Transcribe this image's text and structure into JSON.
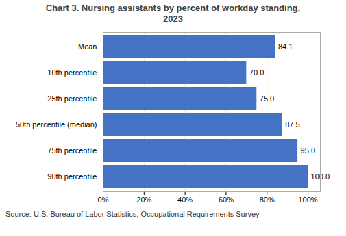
{
  "chart_data": {
    "type": "bar",
    "orientation": "horizontal",
    "title": "Chart 3. Nursing assistants by percent of workday standing,\n2023",
    "categories": [
      "Mean",
      "10th percentile",
      "25th percentile",
      "50th percentile (median)",
      "75th percentile",
      "90th percentile"
    ],
    "values": [
      84.1,
      70.0,
      75.0,
      87.5,
      95.0,
      100.0
    ],
    "value_labels": [
      "84.1",
      "70.0",
      "75.0",
      "87.5",
      "95.0",
      "100.0"
    ],
    "data_labels": true,
    "color": "#4472c4",
    "xlim": [
      0,
      106
    ],
    "xticks": [
      {
        "value": 0,
        "label": "0%"
      },
      {
        "value": 20,
        "label": "20%"
      },
      {
        "value": 40,
        "label": "40%"
      },
      {
        "value": 60,
        "label": "60%"
      },
      {
        "value": 80,
        "label": "80%"
      },
      {
        "value": 100,
        "label": "100%"
      }
    ],
    "grid": true,
    "source": "Source: U.S. Bureau of Labor Statistics, Occupational Requirements Survey"
  }
}
